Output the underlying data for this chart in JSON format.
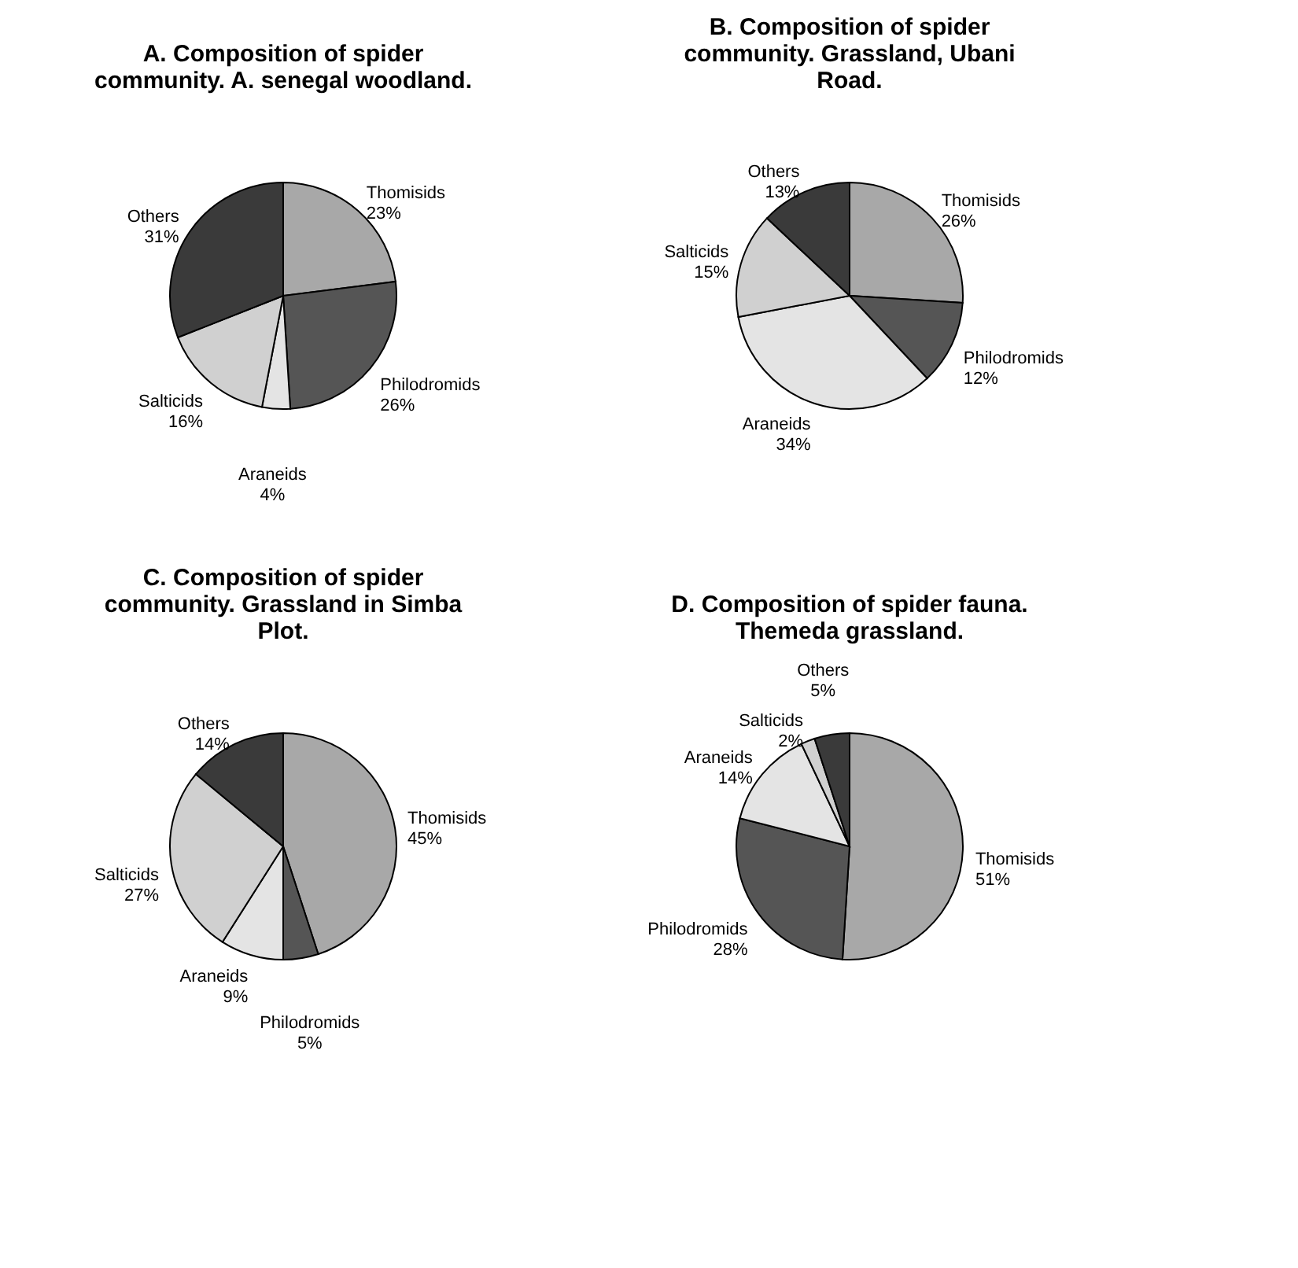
{
  "chart_data": [
    {
      "type": "pie",
      "title": [
        "A. Composition of spider",
        "community. A. senegal woodland."
      ],
      "categories": [
        "Thomisids",
        "Philodromids",
        "Araneids",
        "Salticids",
        "Others"
      ],
      "values": [
        23,
        26,
        4,
        16,
        31
      ],
      "value_labels": [
        "23%",
        "26%",
        "4%",
        "16%",
        "31%"
      ],
      "colors": [
        "#a8a8a8",
        "#555555",
        "#e4e4e4",
        "#d0d0d0",
        "#3a3a3a"
      ]
    },
    {
      "type": "pie",
      "title": [
        "B. Composition of spider",
        "community. Grassland, Ubani",
        "Road."
      ],
      "categories": [
        "Thomisids",
        "Philodromids",
        "Araneids",
        "Salticids",
        "Others"
      ],
      "values": [
        26,
        12,
        34,
        15,
        13
      ],
      "value_labels": [
        "26%",
        "12%",
        "34%",
        "15%",
        "13%"
      ],
      "colors": [
        "#a8a8a8",
        "#555555",
        "#e4e4e4",
        "#d0d0d0",
        "#3a3a3a"
      ]
    },
    {
      "type": "pie",
      "title": [
        "C. Composition of spider",
        "community. Grassland in Simba",
        "Plot."
      ],
      "categories": [
        "Thomisids",
        "Philodromids",
        "Araneids",
        "Salticids",
        "Others"
      ],
      "values": [
        45,
        5,
        9,
        27,
        14
      ],
      "value_labels": [
        "45%",
        "5%",
        "9%",
        "27%",
        "14%"
      ],
      "colors": [
        "#a8a8a8",
        "#555555",
        "#e4e4e4",
        "#d0d0d0",
        "#3a3a3a"
      ]
    },
    {
      "type": "pie",
      "title": [
        "D. Composition of spider fauna.",
        "Themeda grassland."
      ],
      "categories": [
        "Thomisids",
        "Philodromids",
        "Araneids",
        "Salticids",
        "Others"
      ],
      "values": [
        51,
        28,
        14,
        2,
        5
      ],
      "value_labels": [
        "51%",
        "28%",
        "14%",
        "2%",
        "5%"
      ],
      "colors": [
        "#a8a8a8",
        "#555555",
        "#e4e4e4",
        "#d0d0d0",
        "#3a3a3a"
      ]
    }
  ]
}
